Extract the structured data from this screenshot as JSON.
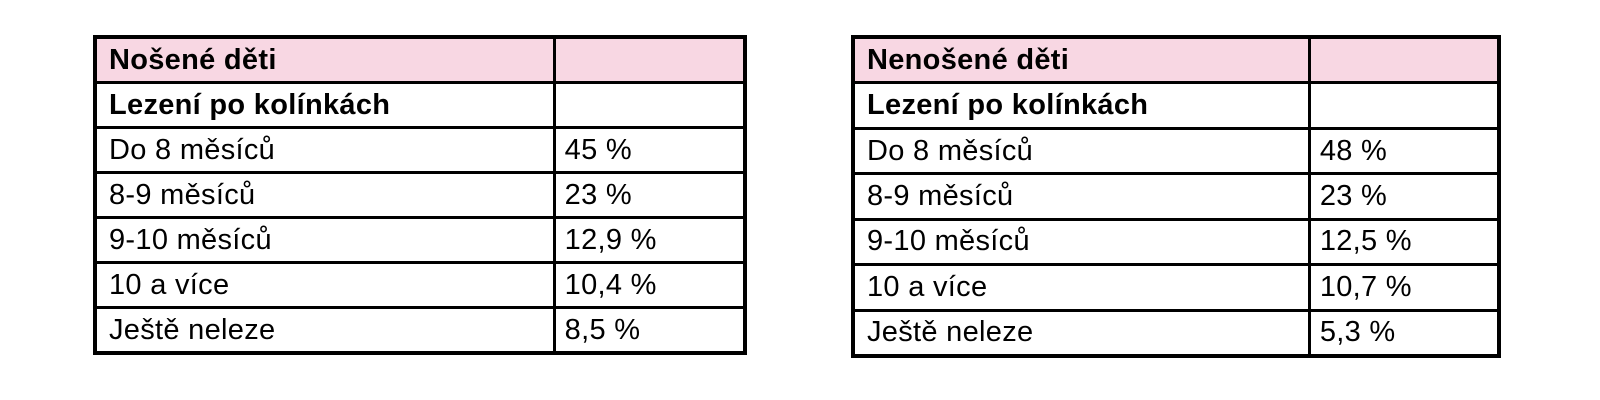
{
  "colors": {
    "header_bg": "#f8d7e3",
    "border": "#000000",
    "text": "#000000",
    "page_bg": "#ffffff"
  },
  "tables": [
    {
      "title": "Nošené děti",
      "subtitle": "Lezení po kolínkách",
      "rows": [
        {
          "label": "Do 8 měsíců",
          "value": "45 %"
        },
        {
          "label": "8-9 měsíců",
          "value": "23 %"
        },
        {
          "label": "9-10 měsíců",
          "value": "12,9 %"
        },
        {
          "label": "10 a více",
          "value": "10,4 %"
        },
        {
          "label": "Ještě neleze",
          "value": "8,5 %"
        }
      ]
    },
    {
      "title": "Nenošené děti",
      "subtitle": "Lezení po kolínkách",
      "rows": [
        {
          "label": "Do 8 měsíců",
          "value": "48 %"
        },
        {
          "label": "8-9 měsíců",
          "value": "23 %"
        },
        {
          "label": "9-10 měsíců",
          "value": "12,5 %"
        },
        {
          "label": "10 a více",
          "value": "10,7 %"
        },
        {
          "label": "Ještě neleze",
          "value": "5,3 %"
        }
      ]
    }
  ],
  "chart_data": [
    {
      "type": "table",
      "title": "Nošené děti",
      "section_label": "Lezení po kolínkách",
      "categories": [
        "Do 8 měsíců",
        "8-9 měsíců",
        "9-10 měsíců",
        "10 a více",
        "Ještě neleze"
      ],
      "values_percent": [
        45,
        23,
        12.9,
        10.4,
        8.5
      ],
      "value_labels": [
        "45 %",
        "23 %",
        "12,9 %",
        "10,4 %",
        "8,5 %"
      ]
    },
    {
      "type": "table",
      "title": "Nenošené děti",
      "section_label": "Lezení po kolínkách",
      "categories": [
        "Do 8 měsíců",
        "8-9 měsíců",
        "9-10 měsíců",
        "10 a více",
        "Ještě neleze"
      ],
      "values_percent": [
        48,
        23,
        12.5,
        10.7,
        5.3
      ],
      "value_labels": [
        "48 %",
        "23 %",
        "12,5 %",
        "10,7 %",
        "5,3 %"
      ]
    }
  ]
}
